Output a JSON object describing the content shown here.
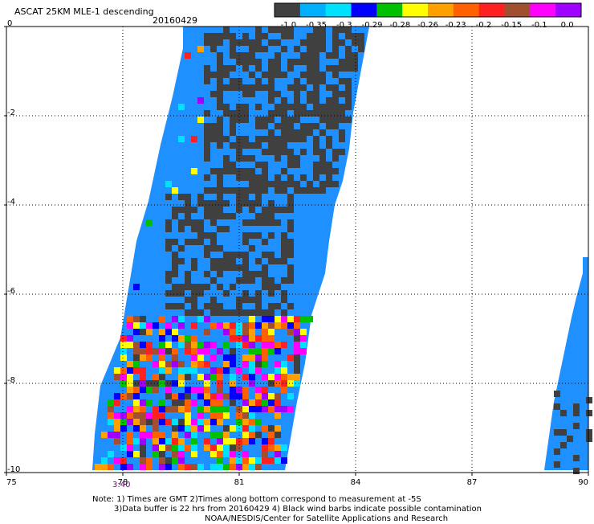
{
  "header": {
    "title": "ASCAT 25KM MLE-1 descending",
    "date": "20160429"
  },
  "colorbar": {
    "labels": [
      "-1.0",
      "-0.35",
      "-0.3",
      "-0.29",
      "-0.28",
      "-0.26",
      "-0.23",
      "-0.2",
      "-0.15",
      "-0.1",
      "0.0"
    ],
    "colors": [
      "#404040",
      "#00b0ff",
      "#00e0ff",
      "#0000ff",
      "#00c000",
      "#ffff00",
      "#ffa000",
      "#ff6000",
      "#ff2020",
      "#a05030",
      "#ff00ff",
      "#a000ff"
    ]
  },
  "axes": {
    "x_ticks": [
      "75",
      "78",
      "81",
      "84",
      "87",
      "90"
    ],
    "y_ticks": [
      "0",
      "-2",
      "-4",
      "-6",
      "-8",
      "-10"
    ]
  },
  "time_label": "3:40",
  "notes": {
    "line1": "Note: 1) Times are GMT 2)Times along bottom correspond to measurement at -5S",
    "line2": "3)Data buffer is 22 hrs from 20160429 4) Black wind barbs indicate possible contamination",
    "line3": "NOAA/NESDIS/Center for Satellite Applications and Research"
  },
  "map": {
    "background": "#ffffff",
    "swath_color": "#1e90ff",
    "gray_color": "#404040",
    "grid_color": "#000000",
    "palette": [
      "#404040",
      "#ff00ff",
      "#a000ff",
      "#ffff00",
      "#ff2020",
      "#0000ff",
      "#00c000",
      "#ffa000",
      "#a05030",
      "#ff6000",
      "#00e0ff"
    ]
  }
}
